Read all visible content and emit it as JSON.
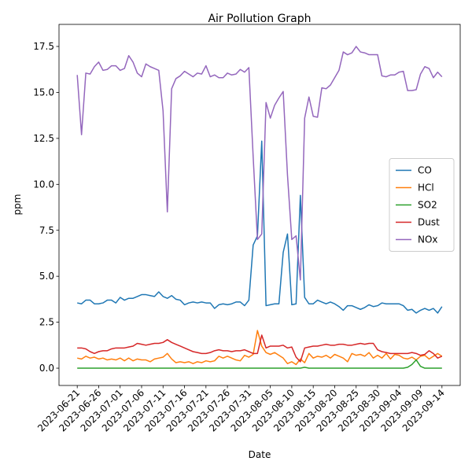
{
  "chart_data": {
    "type": "line",
    "title": "Air Pollution Graph",
    "xlabel": "Date",
    "ylabel": "ppm",
    "x": [
      "2023-06-21",
      "2023-06-22",
      "2023-06-23",
      "2023-06-24",
      "2023-06-25",
      "2023-06-26",
      "2023-06-27",
      "2023-06-28",
      "2023-06-29",
      "2023-06-30",
      "2023-07-01",
      "2023-07-02",
      "2023-07-03",
      "2023-07-04",
      "2023-07-05",
      "2023-07-06",
      "2023-07-07",
      "2023-07-08",
      "2023-07-09",
      "2023-07-10",
      "2023-07-11",
      "2023-07-12",
      "2023-07-13",
      "2023-07-14",
      "2023-07-15",
      "2023-07-16",
      "2023-07-17",
      "2023-07-18",
      "2023-07-19",
      "2023-07-20",
      "2023-07-21",
      "2023-07-22",
      "2023-07-23",
      "2023-07-24",
      "2023-07-25",
      "2023-07-26",
      "2023-07-27",
      "2023-07-28",
      "2023-07-29",
      "2023-07-30",
      "2023-07-31",
      "2023-08-01",
      "2023-08-02",
      "2023-08-03",
      "2023-08-04",
      "2023-08-05",
      "2023-08-06",
      "2023-08-07",
      "2023-08-08",
      "2023-08-09",
      "2023-08-10",
      "2023-08-11",
      "2023-08-12",
      "2023-08-13",
      "2023-08-14",
      "2023-08-15",
      "2023-08-16",
      "2023-08-17",
      "2023-08-18",
      "2023-08-19",
      "2023-08-20",
      "2023-08-21",
      "2023-08-22",
      "2023-08-23",
      "2023-08-24",
      "2023-08-25",
      "2023-08-26",
      "2023-08-27",
      "2023-08-28",
      "2023-08-29",
      "2023-08-30",
      "2023-08-31",
      "2023-09-01",
      "2023-09-02",
      "2023-09-03",
      "2023-09-04",
      "2023-09-05",
      "2023-09-06",
      "2023-09-07",
      "2023-09-08",
      "2023-09-09",
      "2023-09-10",
      "2023-09-11",
      "2023-09-12",
      "2023-09-13",
      "2023-09-14"
    ],
    "series": [
      {
        "name": "CO",
        "color": "#1f77b4",
        "values": [
          3.55,
          3.5,
          3.7,
          3.7,
          3.5,
          3.5,
          3.55,
          3.7,
          3.7,
          3.55,
          3.85,
          3.7,
          3.8,
          3.8,
          3.9,
          4.0,
          4.0,
          3.95,
          3.9,
          4.15,
          3.9,
          3.8,
          3.95,
          3.75,
          3.7,
          3.45,
          3.55,
          3.6,
          3.55,
          3.6,
          3.55,
          3.55,
          3.25,
          3.45,
          3.5,
          3.45,
          3.5,
          3.6,
          3.6,
          3.4,
          3.7,
          6.7,
          7.2,
          12.35,
          3.4,
          3.45,
          3.5,
          3.5,
          6.3,
          7.3,
          3.45,
          3.5,
          9.4,
          3.85,
          3.5,
          3.5,
          3.7,
          3.6,
          3.5,
          3.6,
          3.5,
          3.35,
          3.15,
          3.4,
          3.4,
          3.3,
          3.2,
          3.3,
          3.45,
          3.35,
          3.4,
          3.55,
          3.5,
          3.5,
          3.5,
          3.5,
          3.4,
          3.15,
          3.2,
          3.0,
          3.15,
          3.25,
          3.15,
          3.25,
          3.0,
          3.35
        ]
      },
      {
        "name": "HCl",
        "color": "#ff7f0e",
        "values": [
          0.55,
          0.5,
          0.65,
          0.55,
          0.6,
          0.5,
          0.55,
          0.45,
          0.5,
          0.45,
          0.55,
          0.4,
          0.55,
          0.4,
          0.5,
          0.45,
          0.45,
          0.35,
          0.5,
          0.55,
          0.6,
          0.8,
          0.5,
          0.3,
          0.35,
          0.3,
          0.35,
          0.25,
          0.35,
          0.3,
          0.4,
          0.35,
          0.4,
          0.65,
          0.55,
          0.65,
          0.55,
          0.45,
          0.4,
          0.7,
          0.6,
          0.75,
          2.05,
          1.2,
          0.85,
          0.75,
          0.85,
          0.7,
          0.55,
          0.25,
          0.35,
          0.2,
          0.5,
          0.3,
          0.8,
          0.55,
          0.65,
          0.6,
          0.7,
          0.55,
          0.75,
          0.65,
          0.55,
          0.35,
          0.8,
          0.7,
          0.75,
          0.65,
          0.85,
          0.55,
          0.7,
          0.55,
          0.8,
          0.5,
          0.75,
          0.7,
          0.55,
          0.5,
          0.6,
          0.45,
          0.65,
          0.7,
          0.5,
          0.65,
          0.8,
          0.65
        ]
      },
      {
        "name": "SO2",
        "color": "#2ca02c",
        "values": [
          0,
          0,
          0,
          0,
          0,
          0,
          0,
          0,
          0,
          0,
          0,
          0,
          0,
          0,
          0,
          0,
          0,
          0,
          0,
          0,
          0,
          0,
          0,
          0,
          0,
          0,
          0,
          0,
          0,
          0,
          0,
          0,
          0,
          0,
          0,
          0,
          0,
          0,
          0,
          0,
          0,
          0,
          0,
          0,
          0,
          0,
          0,
          0,
          0,
          0,
          0,
          0,
          0,
          0.05,
          0,
          0,
          0,
          0,
          0,
          0,
          0,
          0,
          0,
          0,
          0,
          0,
          0,
          0,
          0,
          0,
          0,
          0,
          0,
          0,
          0,
          0,
          0,
          0.05,
          0.2,
          0.45,
          0.1,
          0,
          0,
          0,
          0,
          0
        ]
      },
      {
        "name": "Dust",
        "color": "#d62728",
        "values": [
          1.1,
          1.1,
          1.05,
          0.9,
          0.8,
          0.9,
          0.95,
          0.95,
          1.05,
          1.1,
          1.1,
          1.1,
          1.15,
          1.2,
          1.35,
          1.3,
          1.25,
          1.3,
          1.35,
          1.35,
          1.4,
          1.55,
          1.4,
          1.3,
          1.2,
          1.1,
          1.0,
          0.9,
          0.85,
          0.8,
          0.8,
          0.85,
          0.95,
          1.0,
          0.95,
          0.95,
          0.9,
          0.95,
          0.95,
          1.0,
          0.9,
          0.8,
          0.8,
          1.8,
          1.1,
          1.2,
          1.2,
          1.2,
          1.25,
          1.1,
          1.15,
          0.6,
          0.35,
          1.1,
          1.15,
          1.2,
          1.2,
          1.25,
          1.3,
          1.25,
          1.25,
          1.3,
          1.3,
          1.25,
          1.25,
          1.3,
          1.35,
          1.3,
          1.35,
          1.35,
          1.0,
          0.9,
          0.85,
          0.8,
          0.8,
          0.8,
          0.8,
          0.8,
          0.85,
          0.8,
          0.7,
          0.75,
          0.95,
          0.8,
          0.55,
          0.65
        ]
      },
      {
        "name": "NOx",
        "color": "#9467bd",
        "values": [
          15.95,
          12.7,
          16.05,
          16.0,
          16.4,
          16.65,
          16.2,
          16.25,
          16.45,
          16.45,
          16.2,
          16.3,
          17.0,
          16.65,
          16.05,
          15.85,
          16.55,
          16.4,
          16.3,
          16.2,
          14.0,
          8.5,
          15.2,
          15.75,
          15.9,
          16.15,
          16.0,
          15.85,
          16.05,
          16.0,
          16.45,
          15.85,
          15.95,
          15.8,
          15.8,
          16.05,
          15.95,
          16.0,
          16.25,
          16.1,
          16.35,
          11.5,
          7.0,
          7.3,
          14.45,
          13.6,
          14.3,
          14.7,
          15.05,
          10.5,
          7.0,
          7.2,
          4.8,
          13.6,
          14.75,
          13.7,
          13.65,
          15.25,
          15.2,
          15.4,
          15.8,
          16.2,
          17.2,
          17.05,
          17.15,
          17.5,
          17.2,
          17.15,
          17.05,
          17.05,
          17.05,
          15.9,
          15.85,
          15.95,
          15.95,
          16.1,
          16.15,
          15.1,
          15.1,
          15.15,
          16.0,
          16.4,
          16.3,
          15.8,
          16.1,
          15.85
        ]
      }
    ],
    "xlim": [
      "2023-06-16T18:00Z",
      "2023-09-18T06:00Z"
    ],
    "xticks": [
      "2023-06-21",
      "2023-06-26",
      "2023-07-01",
      "2023-07-06",
      "2023-07-11",
      "2023-07-16",
      "2023-07-21",
      "2023-07-26",
      "2023-07-31",
      "2023-08-05",
      "2023-08-10",
      "2023-08-15",
      "2023-08-20",
      "2023-08-25",
      "2023-08-30",
      "2023-09-04",
      "2023-09-09",
      "2023-09-14"
    ],
    "ylim": [
      -0.94,
      18.7
    ],
    "yticks": [
      {
        "value": 0,
        "label": "0.0"
      },
      2.5,
      {
        "value": 5,
        "label": "5.0"
      },
      7.5,
      {
        "value": 10,
        "label": "10.0"
      },
      12.5,
      {
        "value": 15,
        "label": "15.0"
      },
      17.5
    ],
    "grid": false,
    "legend": "center right"
  }
}
